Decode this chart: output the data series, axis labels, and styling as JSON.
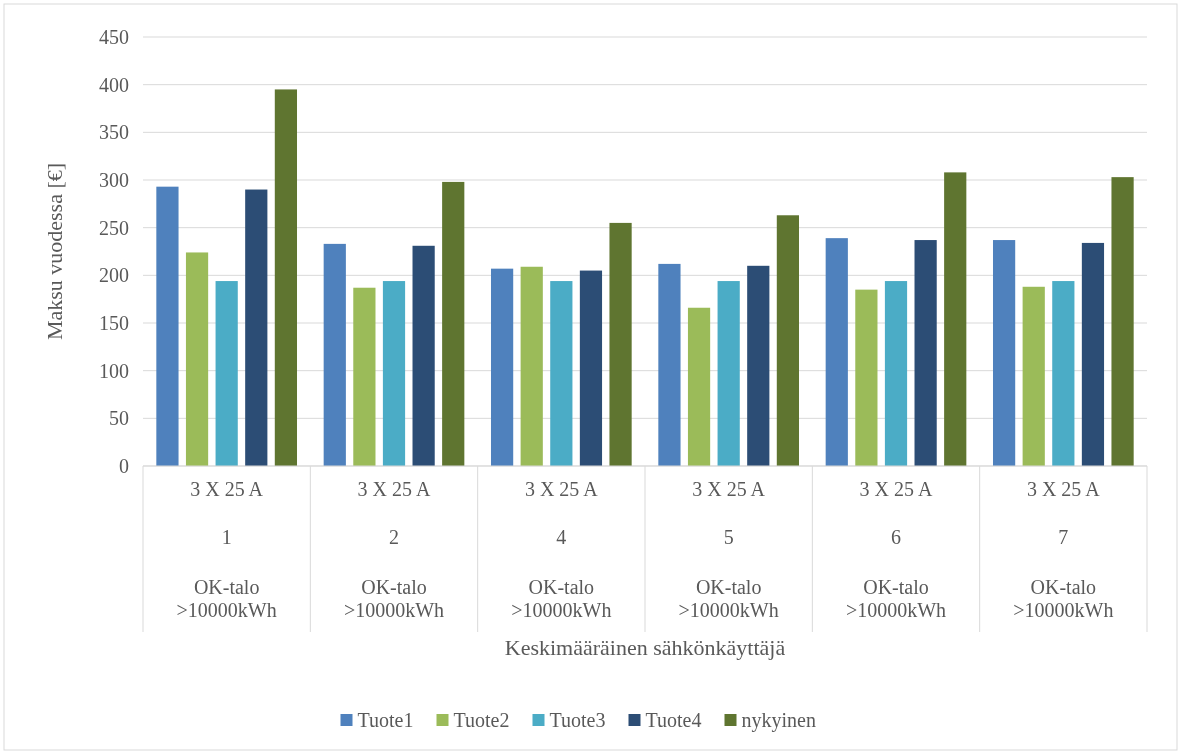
{
  "chart_data": {
    "type": "bar",
    "annotations": [
      "Keskimääräinen sähkönkäyttäjä"
    ],
    "ylabel": "Maksu vuodessa [€]",
    "categories": [
      "3 X 25 A\n1\nOK-talo\n>10000kWh",
      "3 X 25 A\n2\nOK-talo\n>10000kWh",
      "3 X 25 A\n4\nOK-talo\n>10000kWh",
      "3 X 25 A\n5\nOK-talo\n>10000kWh",
      "3 X 25 A\n6\nOK-talo\n>10000kWh",
      "3 X 25 A\n7\nOK-talo\n>10000kWh"
    ],
    "series": [
      {
        "name": "Tuote1",
        "color": "#4f81bd",
        "values": [
          293,
          233,
          207,
          212,
          239,
          237
        ]
      },
      {
        "name": "Tuote2",
        "color": "#9bbb59",
        "values": [
          224,
          187,
          209,
          166,
          185,
          188
        ]
      },
      {
        "name": "Tuote3",
        "color": "#4bacc6",
        "values": [
          194,
          194,
          194,
          194,
          194,
          194
        ]
      },
      {
        "name": "Tuote4",
        "color": "#2c4d75",
        "values": [
          290,
          231,
          205,
          210,
          237,
          234
        ]
      },
      {
        "name": "nykyinen",
        "color": "#5f7530",
        "values": [
          395,
          298,
          255,
          263,
          308,
          303
        ]
      }
    ],
    "ylim": [
      0,
      450
    ],
    "yticks": [
      0,
      50,
      100,
      150,
      200,
      250,
      300,
      350,
      400,
      450
    ],
    "grid": "y",
    "legend": "bottom"
  }
}
